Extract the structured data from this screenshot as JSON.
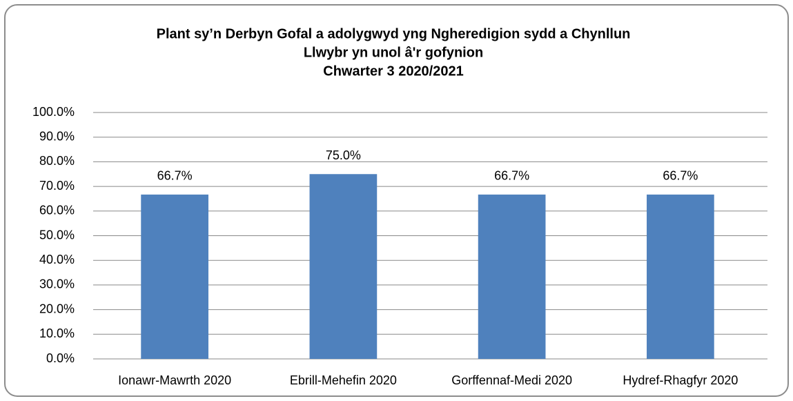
{
  "chart_data": {
    "type": "bar",
    "title": [
      "Plant sy’n Derbyn Gofal a adolygwyd yng Ngheredigion sydd a Chynllun",
      "Llwybr yn unol â'r gofynion",
      "Chwarter 3  2020/2021"
    ],
    "categories": [
      "Ionawr-Mawrth 2020",
      "Ebrill-Mehefin 2020",
      "Gorffennaf-Medi 2020",
      "Hydref-Rhagfyr 2020"
    ],
    "values": [
      66.7,
      75.0,
      66.7,
      66.7
    ],
    "value_labels": [
      "66.7%",
      "75.0%",
      "66.7%",
      "66.7%"
    ],
    "color": "#4f81bd",
    "ylim": [
      0,
      100
    ],
    "yticks": [
      {
        "value": 0,
        "label": "0.0%"
      },
      {
        "value": 10,
        "label": "10.0%"
      },
      {
        "value": 20,
        "label": "20.0%"
      },
      {
        "value": 30,
        "label": "30.0%"
      },
      {
        "value": 40,
        "label": "40.0%"
      },
      {
        "value": 50,
        "label": "50.0%"
      },
      {
        "value": 60,
        "label": "60.0%"
      },
      {
        "value": 70,
        "label": "70.0%"
      },
      {
        "value": 80,
        "label": "80.0%"
      },
      {
        "value": 90,
        "label": "90.0%"
      },
      {
        "value": 100,
        "label": "100.0%"
      }
    ],
    "grid": true
  }
}
